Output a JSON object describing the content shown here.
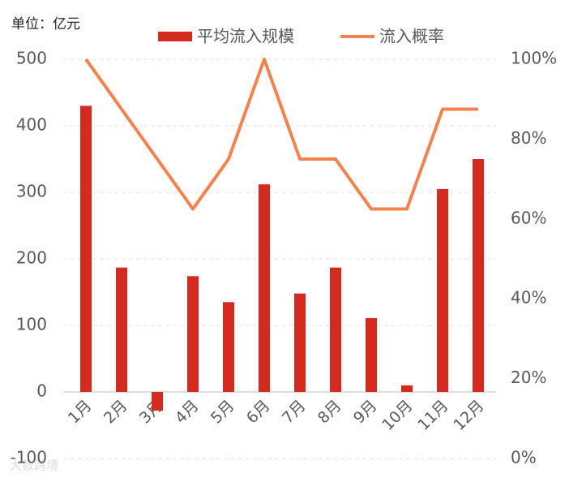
{
  "chart_data": {
    "type": "bar_line",
    "unit_label": "单位：亿元",
    "watermark": "大数跨境",
    "categories": [
      "1月",
      "2月",
      "3月",
      "4月",
      "5月",
      "6月",
      "7月",
      "8月",
      "9月",
      "10月",
      "11月",
      "12月"
    ],
    "series": [
      {
        "name": "平均流入规模",
        "type": "bar",
        "color": "#d42a20",
        "values": [
          430,
          187,
          -28,
          174,
          135,
          312,
          148,
          187,
          111,
          10,
          305,
          350
        ]
      },
      {
        "name": "流入概率",
        "type": "line",
        "axis": "y2",
        "color": "#f4824f",
        "values": [
          100,
          87.5,
          75,
          62.5,
          75,
          100,
          75,
          75,
          62.5,
          62.5,
          87.5,
          87.5
        ]
      }
    ],
    "ylim": [
      -100,
      500
    ],
    "yticks": [
      -100,
      0,
      100,
      200,
      300,
      400,
      500
    ],
    "y2lim": [
      0,
      100
    ],
    "y2ticks": [
      {
        "value": 0,
        "label": "0%"
      },
      {
        "value": 20,
        "label": "20%"
      },
      {
        "value": 40,
        "label": "40%"
      },
      {
        "value": 60,
        "label": "60%"
      },
      {
        "value": 80,
        "label": "80%"
      },
      {
        "value": 100,
        "label": "100%"
      }
    ],
    "grid": true
  }
}
